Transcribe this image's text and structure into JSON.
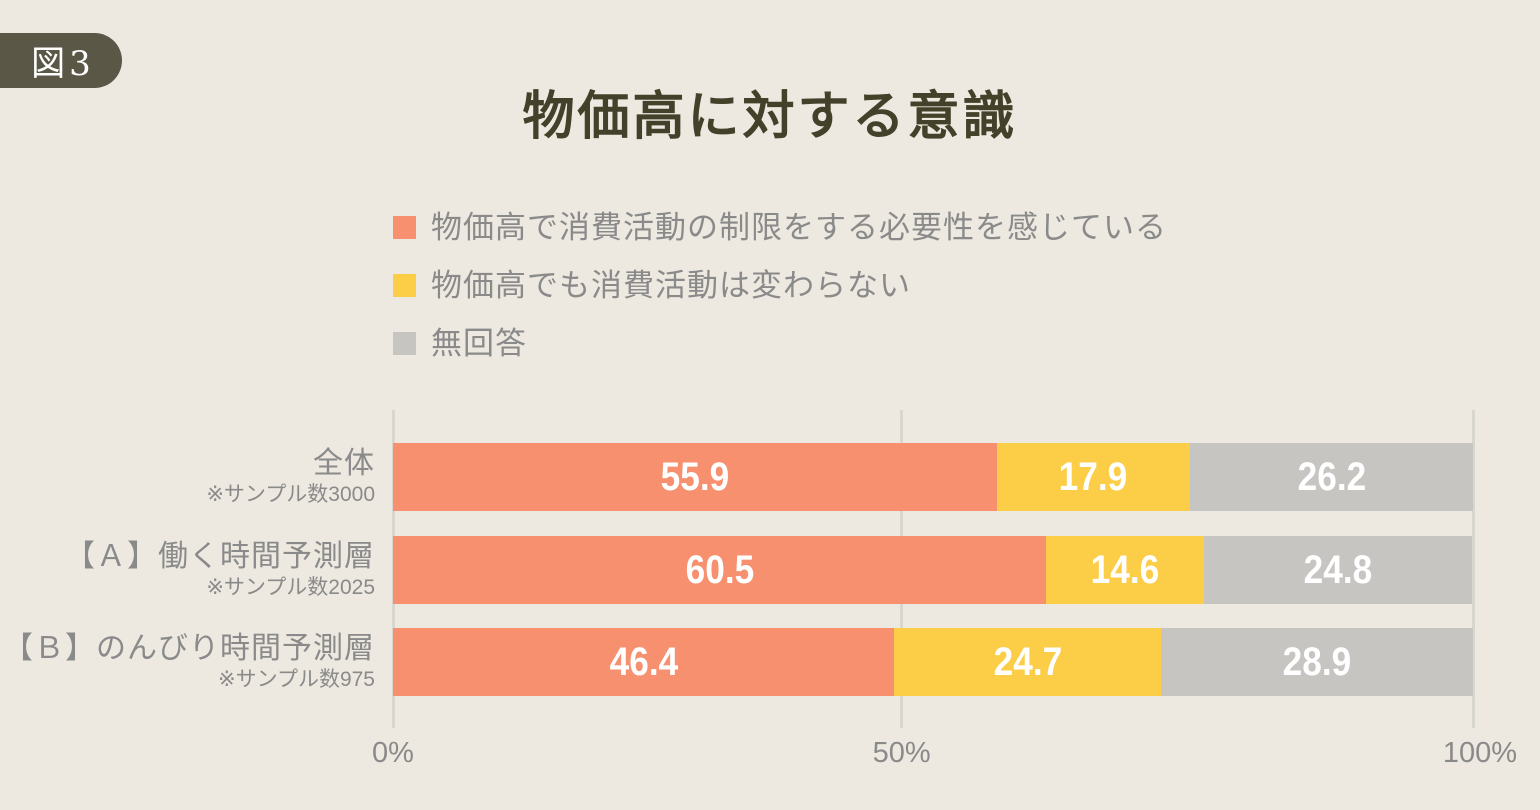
{
  "figure_label": "図3",
  "title": "物価高に対する意識",
  "colors": {
    "background": "#EDE9E0",
    "badge": "#5A5747",
    "title_text": "#44412B",
    "label_text": "#8A8A8A",
    "bar_value_text": "#FFFFFF",
    "gridline": "#D7D6CF"
  },
  "chart_data": {
    "type": "bar",
    "orientation": "horizontal",
    "stacked": true,
    "unit": "%",
    "title": "物価高に対する意識",
    "legend_position": "top",
    "xlim": [
      0,
      100
    ],
    "x_ticks": [
      "0%",
      "50%",
      "100%"
    ],
    "grid": true,
    "categories": [
      {
        "label": "全体",
        "note": "※サンプル数3000"
      },
      {
        "label": "【Ａ】働く時間予測層",
        "note": "※サンプル数2025"
      },
      {
        "label": "【Ｂ】のんびり時間予測層",
        "note": "※サンプル数975"
      }
    ],
    "series": [
      {
        "name": "物価高で消費活動の制限をする必要性を感じている",
        "color": "#F7906F",
        "values": [
          55.9,
          60.5,
          46.4
        ]
      },
      {
        "name": "物価高でも消費活動は変わらない",
        "color": "#FCCD47",
        "values": [
          17.9,
          14.6,
          24.7
        ]
      },
      {
        "name": "無回答",
        "color": "#C7C5C2",
        "values": [
          26.2,
          24.8,
          28.9
        ]
      }
    ]
  }
}
